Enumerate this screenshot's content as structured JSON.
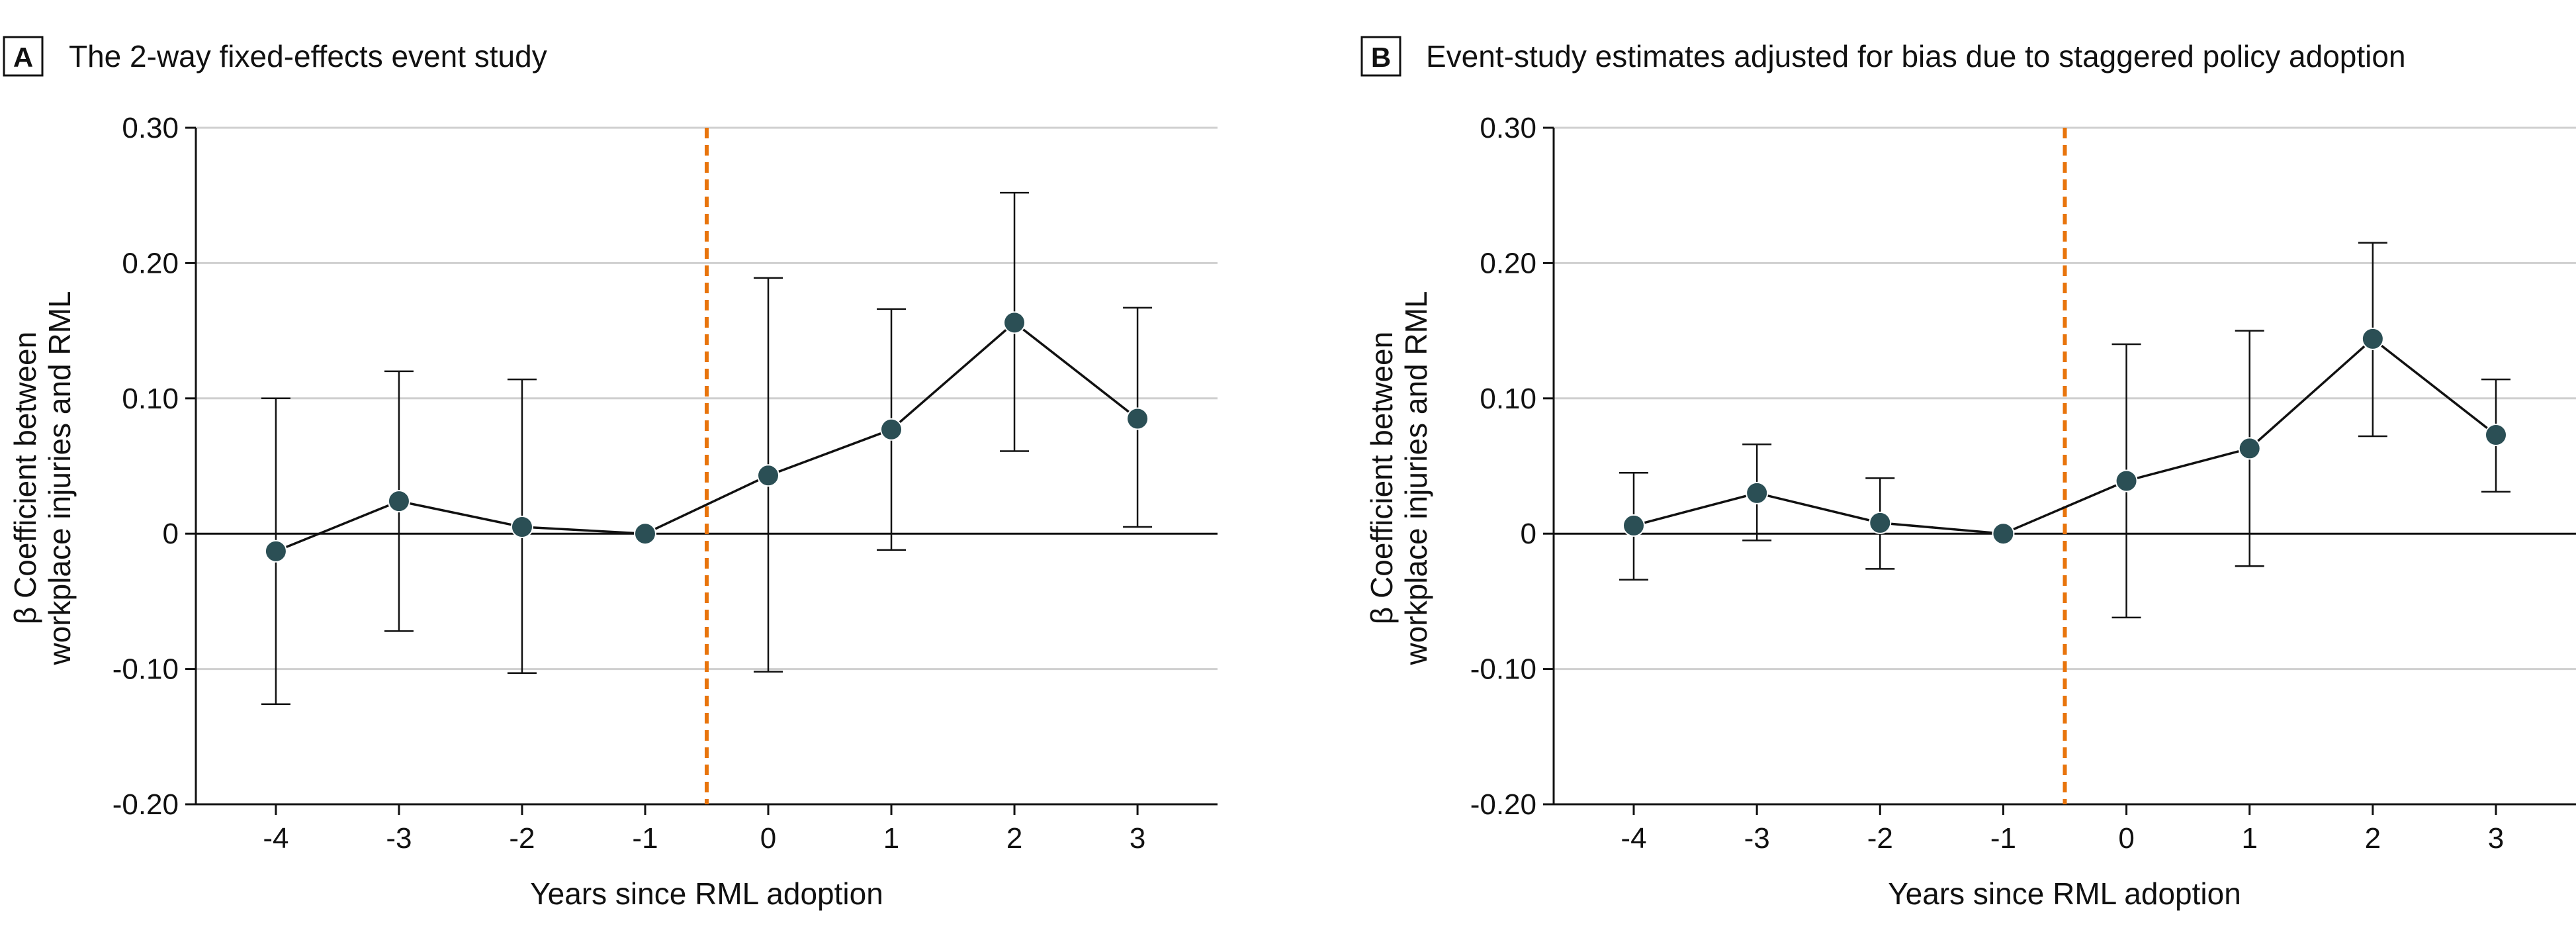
{
  "chart_data": [
    {
      "type": "scatter",
      "panel_label": "A",
      "title": "The 2-way fixed-effects event study",
      "xlabel": "Years since RML adoption",
      "ylabel": [
        "β Coefficient between",
        "workplace injuries and RML"
      ],
      "x": [
        -4,
        -3,
        -2,
        -1,
        0,
        1,
        2,
        3
      ],
      "x_tick_labels": [
        "-4",
        "-3",
        "-2",
        "-1",
        "0",
        "1",
        "2",
        "3"
      ],
      "y": [
        -0.013,
        0.024,
        0.005,
        0.0,
        0.043,
        0.077,
        0.156,
        0.085
      ],
      "ci_low": [
        -0.126,
        -0.072,
        -0.103,
        0.0,
        -0.102,
        -0.012,
        0.061,
        0.005
      ],
      "ci_high": [
        0.1,
        0.12,
        0.114,
        0.0,
        0.189,
        0.166,
        0.252,
        0.167
      ],
      "ylim": [
        -0.2,
        0.3
      ],
      "y_ticks": [
        -0.2,
        -0.1,
        0,
        0.1,
        0.2,
        0.3
      ],
      "y_tick_labels": [
        "-0.20",
        "-0.10",
        "0",
        "0.10",
        "0.20",
        "0.30"
      ],
      "vline_x": -0.5,
      "grid": true
    },
    {
      "type": "scatter",
      "panel_label": "B",
      "title": "Event-study estimates adjusted for bias due to staggered policy adoption",
      "xlabel": "Years since RML adoption",
      "ylabel": [
        "β Coefficient between",
        "workplace injuries and RML"
      ],
      "x": [
        -4,
        -3,
        -2,
        -1,
        0,
        1,
        2,
        3
      ],
      "x_tick_labels": [
        "-4",
        "-3",
        "-2",
        "-1",
        "0",
        "1",
        "2",
        "3"
      ],
      "y": [
        0.006,
        0.03,
        0.008,
        0.0,
        0.039,
        0.063,
        0.144,
        0.073
      ],
      "ci_low": [
        -0.034,
        -0.005,
        -0.026,
        0.0,
        -0.062,
        -0.024,
        0.072,
        0.031
      ],
      "ci_high": [
        0.045,
        0.066,
        0.041,
        0.0,
        0.14,
        0.15,
        0.215,
        0.114
      ],
      "ylim": [
        -0.2,
        0.3
      ],
      "y_ticks": [
        -0.2,
        -0.1,
        0,
        0.1,
        0.2,
        0.3
      ],
      "y_tick_labels": [
        "-0.20",
        "-0.10",
        "0",
        "0.10",
        "0.20",
        "0.30"
      ],
      "vline_x": -0.5,
      "grid": true
    }
  ],
  "colors": {
    "marker": "#2b4f55",
    "line": "#111111",
    "vline": "#e8740c",
    "grid": "#cfcfcf",
    "axis": "#111111"
  }
}
